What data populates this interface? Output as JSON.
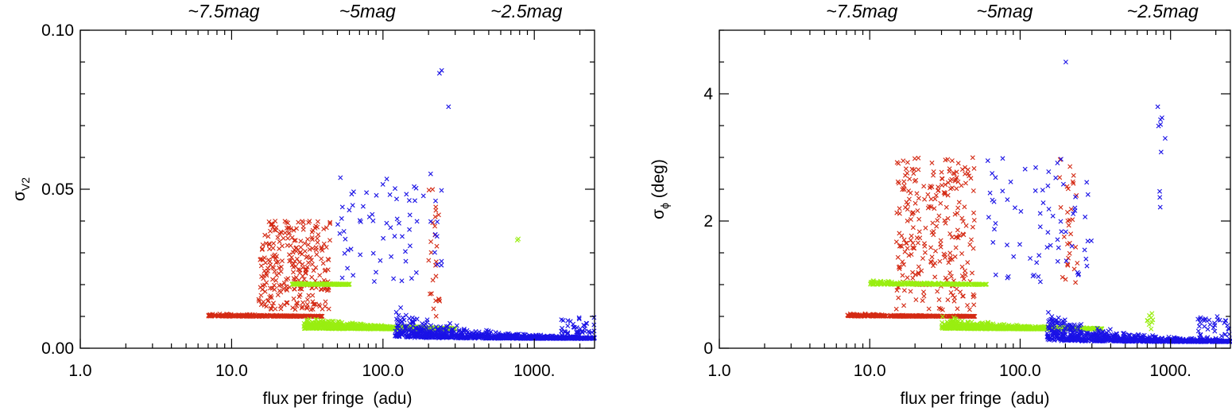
{
  "chart_data": [
    {
      "type": "scatter",
      "xscale": "log",
      "xlim": [
        1,
        2500
      ],
      "ylim": [
        0,
        0.1
      ],
      "xlabel": "flux per fringe  (adu)",
      "ylabel": "σV2",
      "ylabel_main": "σ",
      "ylabel_sub": "V2",
      "ylabel_unit": "",
      "xticks": [
        1,
        10,
        100,
        1000
      ],
      "xtick_labels": [
        "1.0",
        "10.0",
        "100.0",
        "1000."
      ],
      "yticks": [
        0,
        0.05,
        0.1
      ],
      "ytick_labels": [
        "0.00",
        "0.05",
        "0.10"
      ],
      "marker": "x",
      "top_annotations": [
        {
          "x": 10,
          "text": "~7.5mag"
        },
        {
          "x": 100,
          "text": "~5mag"
        },
        {
          "x": 1000,
          "text": "~2.5mag"
        }
      ],
      "series": [
        {
          "name": "red",
          "color": "#d42a14",
          "clusters": [
            {
              "x": [
                7,
                40
              ],
              "y": [
                0.01,
                0.1
              ],
              "n": 320,
              "shape": "power",
              "k": 0.003
            },
            {
              "x": [
                15,
                45
              ],
              "y": [
                0.012,
                0.04
              ],
              "n": 280,
              "shape": "box"
            },
            {
              "x": [
                200,
                240
              ],
              "y": [
                0.01,
                0.05
              ],
              "n": 25,
              "shape": "box"
            }
          ]
        },
        {
          "name": "green",
          "color": "#99ee11",
          "clusters": [
            {
              "x": [
                25,
                60
              ],
              "y": [
                0.02,
                0.1
              ],
              "n": 260,
              "shape": "power",
              "k": 0.006
            },
            {
              "x": [
                30,
                300
              ],
              "y": [
                0.006,
                0.03
              ],
              "n": 900,
              "shape": "power",
              "k": 0.05
            },
            {
              "x": [
                770,
                790
              ],
              "y": [
                0.033,
                0.035
              ],
              "n": 2,
              "shape": "box"
            }
          ]
        },
        {
          "name": "blue",
          "color": "#1a12e6",
          "clusters": [
            {
              "x": [
                50,
                250
              ],
              "y": [
                0.02,
                0.055
              ],
              "n": 70,
              "shape": "box"
            },
            {
              "x": [
                120,
                2500
              ],
              "y": [
                0.003,
                0.03
              ],
              "n": 800,
              "shape": "power",
              "k": 0.5
            },
            {
              "x": [
                235,
                245
              ],
              "y": [
                0.085,
                0.088
              ],
              "n": 2,
              "shape": "box"
            },
            {
              "x": [
                270,
                280
              ],
              "y": [
                0.075,
                0.076
              ],
              "n": 1,
              "shape": "box"
            },
            {
              "x": [
                1500,
                2500
              ],
              "y": [
                0.004,
                0.01
              ],
              "n": 40,
              "shape": "box"
            }
          ]
        }
      ]
    },
    {
      "type": "scatter",
      "xscale": "log",
      "xlim": [
        1,
        2500
      ],
      "ylim": [
        0,
        5
      ],
      "xlabel": "flux per fringe  (adu)",
      "ylabel": "σϕ (deg)",
      "ylabel_main": "σ",
      "ylabel_sub": "ϕ",
      "ylabel_unit": " (deg)",
      "xticks": [
        1,
        10,
        100,
        1000
      ],
      "xtick_labels": [
        "1.0",
        "10.0",
        "100.0",
        "1000."
      ],
      "yticks": [
        0,
        2,
        4
      ],
      "ytick_labels": [
        "0",
        "2",
        "4"
      ],
      "marker": "x",
      "top_annotations": [
        {
          "x": 10,
          "text": "~7.5mag"
        },
        {
          "x": 100,
          "text": "~5mag"
        },
        {
          "x": 1000,
          "text": "~2.5mag"
        }
      ],
      "series": [
        {
          "name": "red",
          "color": "#d42a14",
          "clusters": [
            {
              "x": [
                7,
                50
              ],
              "y": [
                0.5,
                5
              ],
              "n": 360,
              "shape": "power",
              "k": 0.15
            },
            {
              "x": [
                15,
                50
              ],
              "y": [
                0.6,
                3
              ],
              "n": 260,
              "shape": "box"
            },
            {
              "x": [
                180,
                240
              ],
              "y": [
                1,
                3
              ],
              "n": 30,
              "shape": "box"
            }
          ]
        },
        {
          "name": "green",
          "color": "#99ee11",
          "clusters": [
            {
              "x": [
                10,
                60
              ],
              "y": [
                1,
                5
              ],
              "n": 280,
              "shape": "power",
              "k": 0.3
            },
            {
              "x": [
                30,
                350
              ],
              "y": [
                0.3,
                2
              ],
              "n": 900,
              "shape": "power",
              "k": 2.5
            },
            {
              "x": [
                700,
                800
              ],
              "y": [
                0.3,
                0.6
              ],
              "n": 10,
              "shape": "box"
            }
          ]
        },
        {
          "name": "blue",
          "color": "#1a12e6",
          "clusters": [
            {
              "x": [
                60,
                300
              ],
              "y": [
                1,
                3
              ],
              "n": 70,
              "shape": "box"
            },
            {
              "x": [
                150,
                2500
              ],
              "y": [
                0.1,
                1.6
              ],
              "n": 800,
              "shape": "power",
              "k": 30
            },
            {
              "x": [
                820,
                950
              ],
              "y": [
                2.2,
                4
              ],
              "n": 10,
              "shape": "box"
            },
            {
              "x": [
                195,
                205
              ],
              "y": [
                4.3,
                4.5
              ],
              "n": 1,
              "shape": "box"
            },
            {
              "x": [
                1500,
                2500
              ],
              "y": [
                0.1,
                0.5
              ],
              "n": 40,
              "shape": "box"
            }
          ]
        }
      ]
    }
  ]
}
